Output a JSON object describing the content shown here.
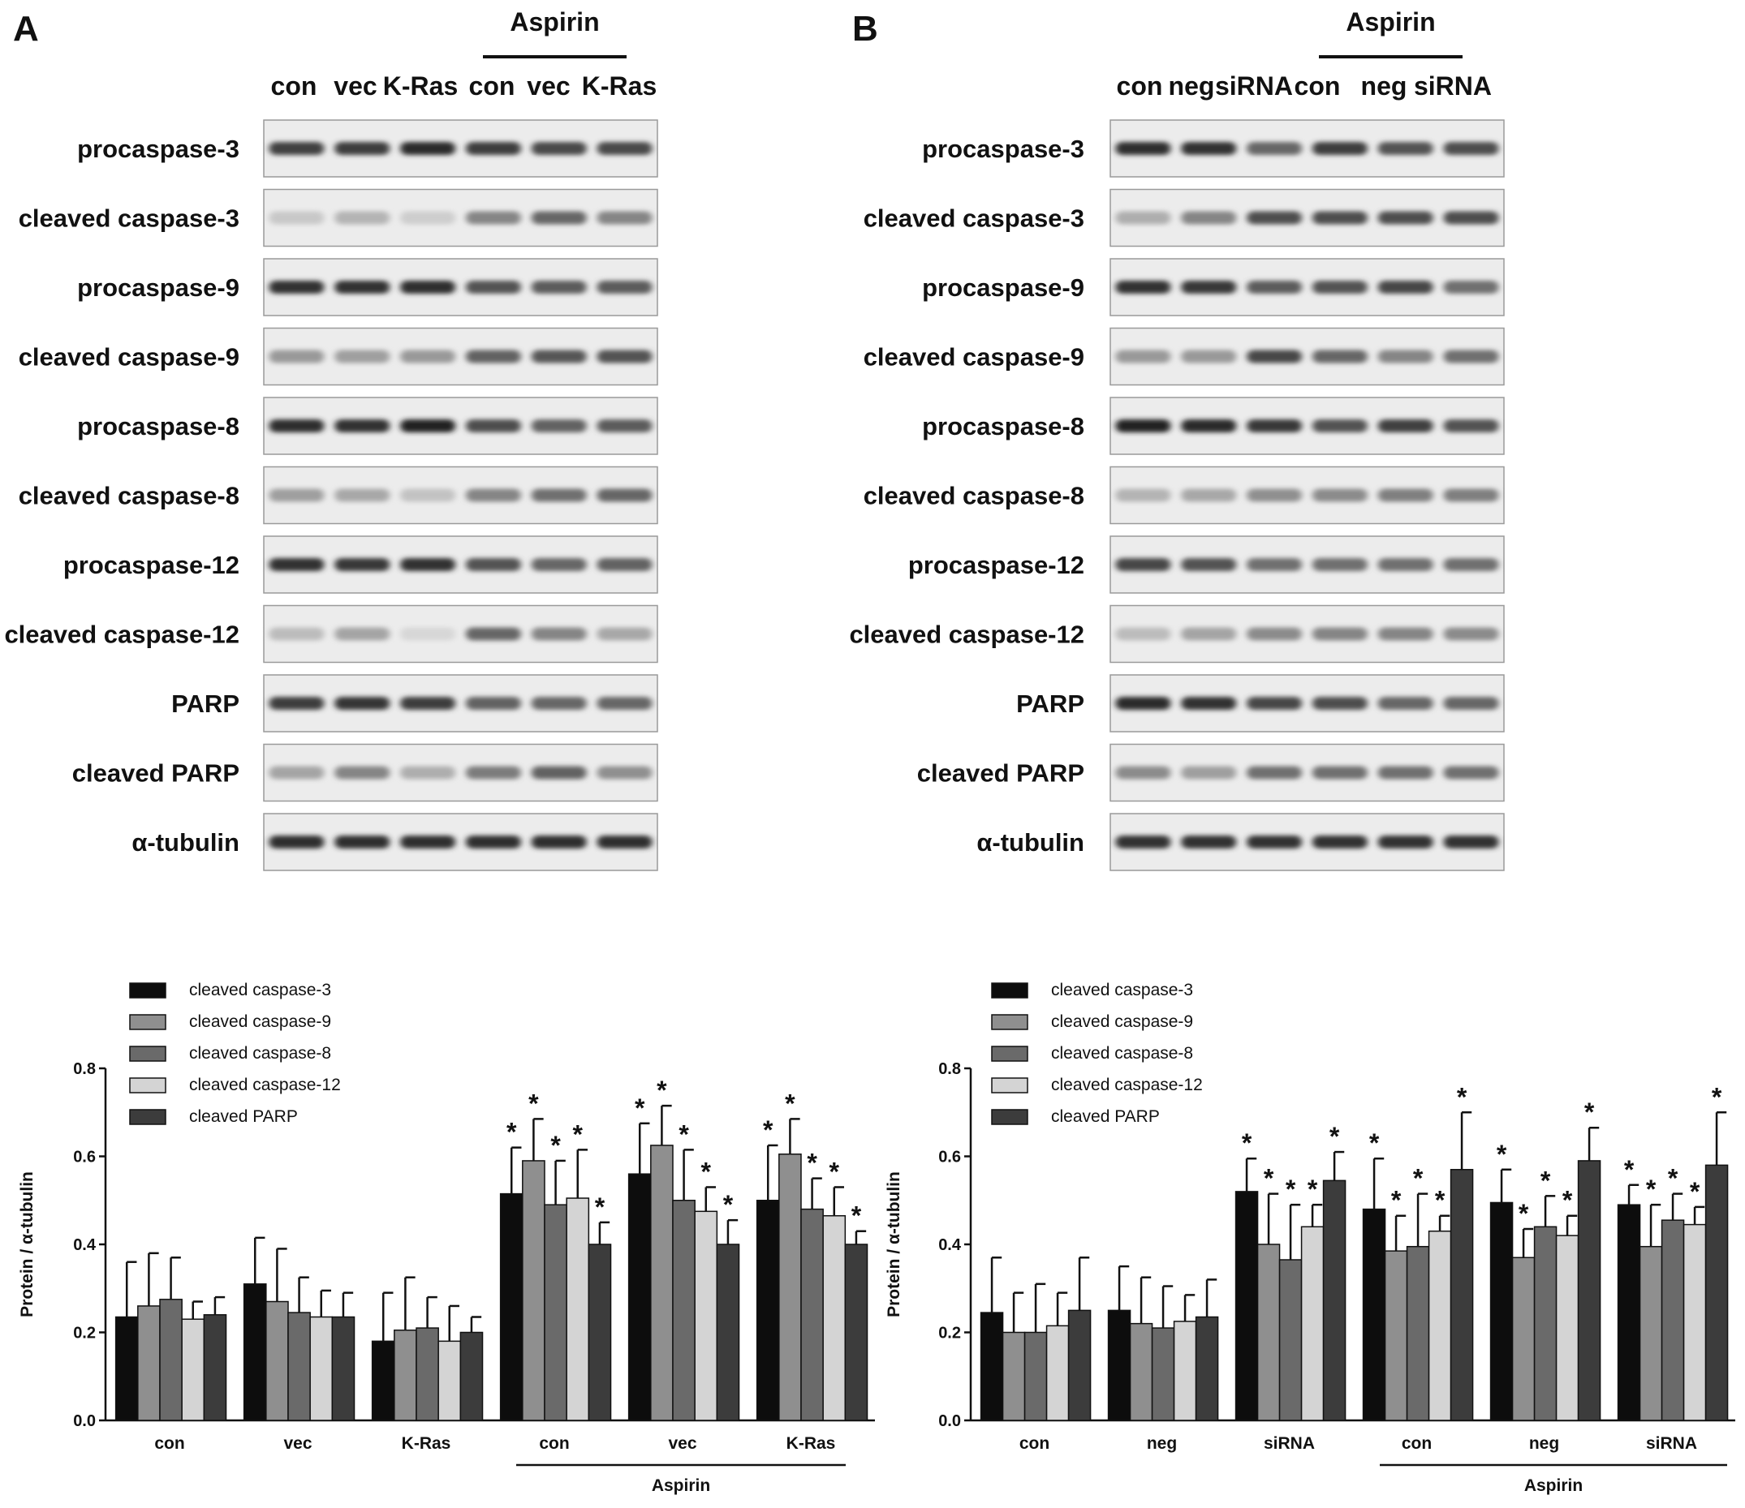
{
  "panels": [
    {
      "letter": "A",
      "treatment_label": "Aspirin",
      "lanes": [
        "con",
        "vec",
        "K-Ras",
        "con",
        "vec",
        "K-Ras"
      ],
      "blot_rows": [
        {
          "label": "procaspase-3",
          "intensity": [
            0.78,
            0.8,
            0.9,
            0.8,
            0.74,
            0.74
          ]
        },
        {
          "label": "cleaved caspase-3",
          "intensity": [
            0.12,
            0.22,
            0.1,
            0.45,
            0.6,
            0.45
          ]
        },
        {
          "label": "procaspase-9",
          "intensity": [
            0.85,
            0.85,
            0.88,
            0.7,
            0.65,
            0.65
          ]
        },
        {
          "label": "cleaved caspase-9",
          "intensity": [
            0.35,
            0.32,
            0.35,
            0.62,
            0.68,
            0.7
          ]
        },
        {
          "label": "procaspase-8",
          "intensity": [
            0.88,
            0.85,
            0.92,
            0.72,
            0.62,
            0.65
          ]
        },
        {
          "label": "cleaved caspase-8",
          "intensity": [
            0.32,
            0.28,
            0.15,
            0.45,
            0.55,
            0.6
          ]
        },
        {
          "label": "procaspase-12",
          "intensity": [
            0.85,
            0.82,
            0.85,
            0.7,
            0.6,
            0.62
          ]
        },
        {
          "label": "cleaved caspase-12",
          "intensity": [
            0.18,
            0.3,
            0.05,
            0.6,
            0.45,
            0.28
          ]
        },
        {
          "label": "PARP",
          "intensity": [
            0.8,
            0.84,
            0.8,
            0.62,
            0.6,
            0.6
          ]
        },
        {
          "label": "cleaved PARP",
          "intensity": [
            0.3,
            0.45,
            0.25,
            0.5,
            0.62,
            0.4
          ]
        },
        {
          "label": "α-tubulin",
          "intensity": [
            0.88,
            0.88,
            0.88,
            0.88,
            0.88,
            0.88
          ]
        }
      ]
    },
    {
      "letter": "B",
      "treatment_label": "Aspirin",
      "lanes": [
        "con",
        "neg",
        "siRNA",
        "con",
        "neg",
        "siRNA"
      ],
      "blot_rows": [
        {
          "label": "procaspase-3",
          "intensity": [
            0.88,
            0.86,
            0.6,
            0.8,
            0.7,
            0.72
          ]
        },
        {
          "label": "cleaved caspase-3",
          "intensity": [
            0.25,
            0.45,
            0.72,
            0.72,
            0.72,
            0.72
          ]
        },
        {
          "label": "procaspase-9",
          "intensity": [
            0.85,
            0.82,
            0.65,
            0.7,
            0.75,
            0.55
          ]
        },
        {
          "label": "cleaved caspase-9",
          "intensity": [
            0.35,
            0.35,
            0.75,
            0.6,
            0.45,
            0.55
          ]
        },
        {
          "label": "procaspase-8",
          "intensity": [
            0.92,
            0.9,
            0.82,
            0.7,
            0.78,
            0.7
          ]
        },
        {
          "label": "cleaved caspase-8",
          "intensity": [
            0.22,
            0.28,
            0.4,
            0.42,
            0.48,
            0.48
          ]
        },
        {
          "label": "procaspase-12",
          "intensity": [
            0.75,
            0.7,
            0.55,
            0.55,
            0.55,
            0.55
          ]
        },
        {
          "label": "cleaved caspase-12",
          "intensity": [
            0.18,
            0.3,
            0.42,
            0.45,
            0.45,
            0.42
          ]
        },
        {
          "label": "PARP",
          "intensity": [
            0.9,
            0.85,
            0.75,
            0.72,
            0.6,
            0.6
          ]
        },
        {
          "label": "cleaved PARP",
          "intensity": [
            0.42,
            0.32,
            0.55,
            0.55,
            0.55,
            0.55
          ]
        },
        {
          "label": "α-tubulin",
          "intensity": [
            0.85,
            0.85,
            0.85,
            0.85,
            0.85,
            0.85
          ]
        }
      ]
    }
  ],
  "chart_data": [
    {
      "type": "bar",
      "ylabel": "Protein / α-tubulin",
      "xlabel": "",
      "ylim": [
        0,
        0.8
      ],
      "yticks": [
        "0.0",
        "0.2",
        "0.4",
        "0.6",
        "0.8"
      ],
      "categories": [
        "con",
        "vec",
        "K-Ras",
        "con",
        "vec",
        "K-Ras"
      ],
      "group_label": "Aspirin",
      "grouped_categories": [
        3,
        4,
        5
      ],
      "legend_position": "top-left",
      "series": [
        {
          "name": "cleaved caspase-3",
          "color": "#0d0d0d",
          "values": [
            0.235,
            0.31,
            0.18,
            0.515,
            0.56,
            0.5
          ],
          "errors": [
            0.125,
            0.105,
            0.11,
            0.105,
            0.115,
            0.125
          ],
          "significant": [
            false,
            false,
            false,
            true,
            true,
            true
          ]
        },
        {
          "name": "cleaved caspase-9",
          "color": "#8f8f8f",
          "values": [
            0.26,
            0.27,
            0.205,
            0.59,
            0.625,
            0.605
          ],
          "errors": [
            0.12,
            0.12,
            0.12,
            0.095,
            0.09,
            0.08
          ],
          "significant": [
            false,
            false,
            false,
            true,
            true,
            true
          ]
        },
        {
          "name": "cleaved caspase-8",
          "color": "#6a6a6a",
          "values": [
            0.275,
            0.245,
            0.21,
            0.49,
            0.5,
            0.48
          ],
          "errors": [
            0.095,
            0.08,
            0.07,
            0.1,
            0.115,
            0.07
          ],
          "significant": [
            false,
            false,
            false,
            true,
            true,
            true
          ]
        },
        {
          "name": "cleaved caspase-12",
          "color": "#d4d4d4",
          "values": [
            0.23,
            0.235,
            0.18,
            0.505,
            0.475,
            0.465
          ],
          "errors": [
            0.04,
            0.06,
            0.08,
            0.11,
            0.055,
            0.065
          ],
          "significant": [
            false,
            false,
            false,
            true,
            true,
            true
          ]
        },
        {
          "name": "cleaved PARP",
          "color": "#3c3c3c",
          "values": [
            0.24,
            0.235,
            0.2,
            0.4,
            0.4,
            0.4
          ],
          "errors": [
            0.04,
            0.055,
            0.035,
            0.05,
            0.055,
            0.03
          ],
          "significant": [
            false,
            false,
            false,
            true,
            true,
            true
          ]
        }
      ]
    },
    {
      "type": "bar",
      "ylabel": "Protein / α-tubulin",
      "xlabel": "",
      "ylim": [
        0,
        0.8
      ],
      "yticks": [
        "0.0",
        "0.2",
        "0.4",
        "0.6",
        "0.8"
      ],
      "categories": [
        "con",
        "neg",
        "siRNA",
        "con",
        "neg",
        "siRNA"
      ],
      "group_label": "Aspirin",
      "grouped_categories": [
        3,
        4,
        5
      ],
      "legend_position": "top-left",
      "series": [
        {
          "name": "cleaved caspase-3",
          "color": "#0d0d0d",
          "values": [
            0.245,
            0.25,
            0.52,
            0.48,
            0.495,
            0.49
          ],
          "errors": [
            0.125,
            0.1,
            0.075,
            0.115,
            0.075,
            0.045
          ],
          "significant": [
            false,
            false,
            true,
            true,
            true,
            true
          ]
        },
        {
          "name": "cleaved caspase-9",
          "color": "#8f8f8f",
          "values": [
            0.2,
            0.22,
            0.4,
            0.385,
            0.37,
            0.395
          ],
          "errors": [
            0.09,
            0.105,
            0.115,
            0.08,
            0.065,
            0.095
          ],
          "significant": [
            false,
            false,
            true,
            true,
            true,
            true
          ]
        },
        {
          "name": "cleaved caspase-8",
          "color": "#6a6a6a",
          "values": [
            0.2,
            0.21,
            0.365,
            0.395,
            0.44,
            0.455
          ],
          "errors": [
            0.11,
            0.095,
            0.125,
            0.12,
            0.07,
            0.06
          ],
          "significant": [
            false,
            false,
            true,
            true,
            true,
            true
          ]
        },
        {
          "name": "cleaved caspase-12",
          "color": "#d4d4d4",
          "values": [
            0.215,
            0.225,
            0.44,
            0.43,
            0.42,
            0.445
          ],
          "errors": [
            0.075,
            0.06,
            0.05,
            0.035,
            0.045,
            0.04
          ],
          "significant": [
            false,
            false,
            true,
            true,
            true,
            true
          ]
        },
        {
          "name": "cleaved PARP",
          "color": "#3c3c3c",
          "values": [
            0.25,
            0.235,
            0.545,
            0.57,
            0.59,
            0.58
          ],
          "errors": [
            0.12,
            0.085,
            0.065,
            0.13,
            0.075,
            0.12
          ],
          "significant": [
            false,
            false,
            true,
            true,
            true,
            true
          ]
        }
      ]
    }
  ]
}
